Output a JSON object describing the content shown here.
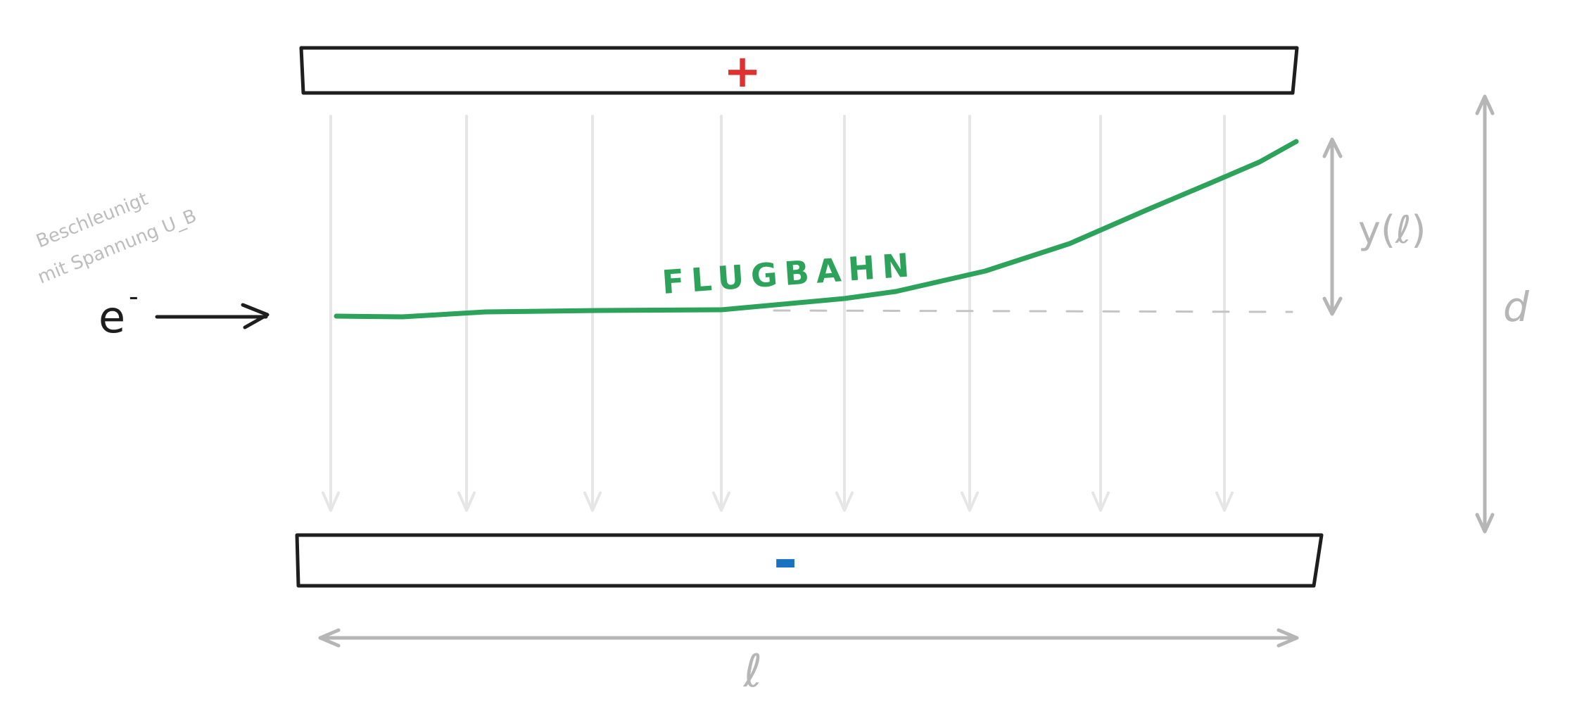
{
  "plates": {
    "top_sign": "+",
    "bottom_sign": "-",
    "top_sign_color": "#e03131",
    "bottom_sign_color": "#1971c2"
  },
  "electron": {
    "label": "e",
    "charge": "-"
  },
  "note": {
    "line1": "Beschleunigt",
    "line2": "mit Spannung U_B"
  },
  "trajectory": {
    "label": "FLUGBAHN",
    "color": "#2ca25a"
  },
  "dimensions": {
    "deflection": "y(ℓ)",
    "distance": "d",
    "length": "ℓ"
  },
  "field_lines": {
    "count": 8,
    "color": "#e6e6e6"
  }
}
